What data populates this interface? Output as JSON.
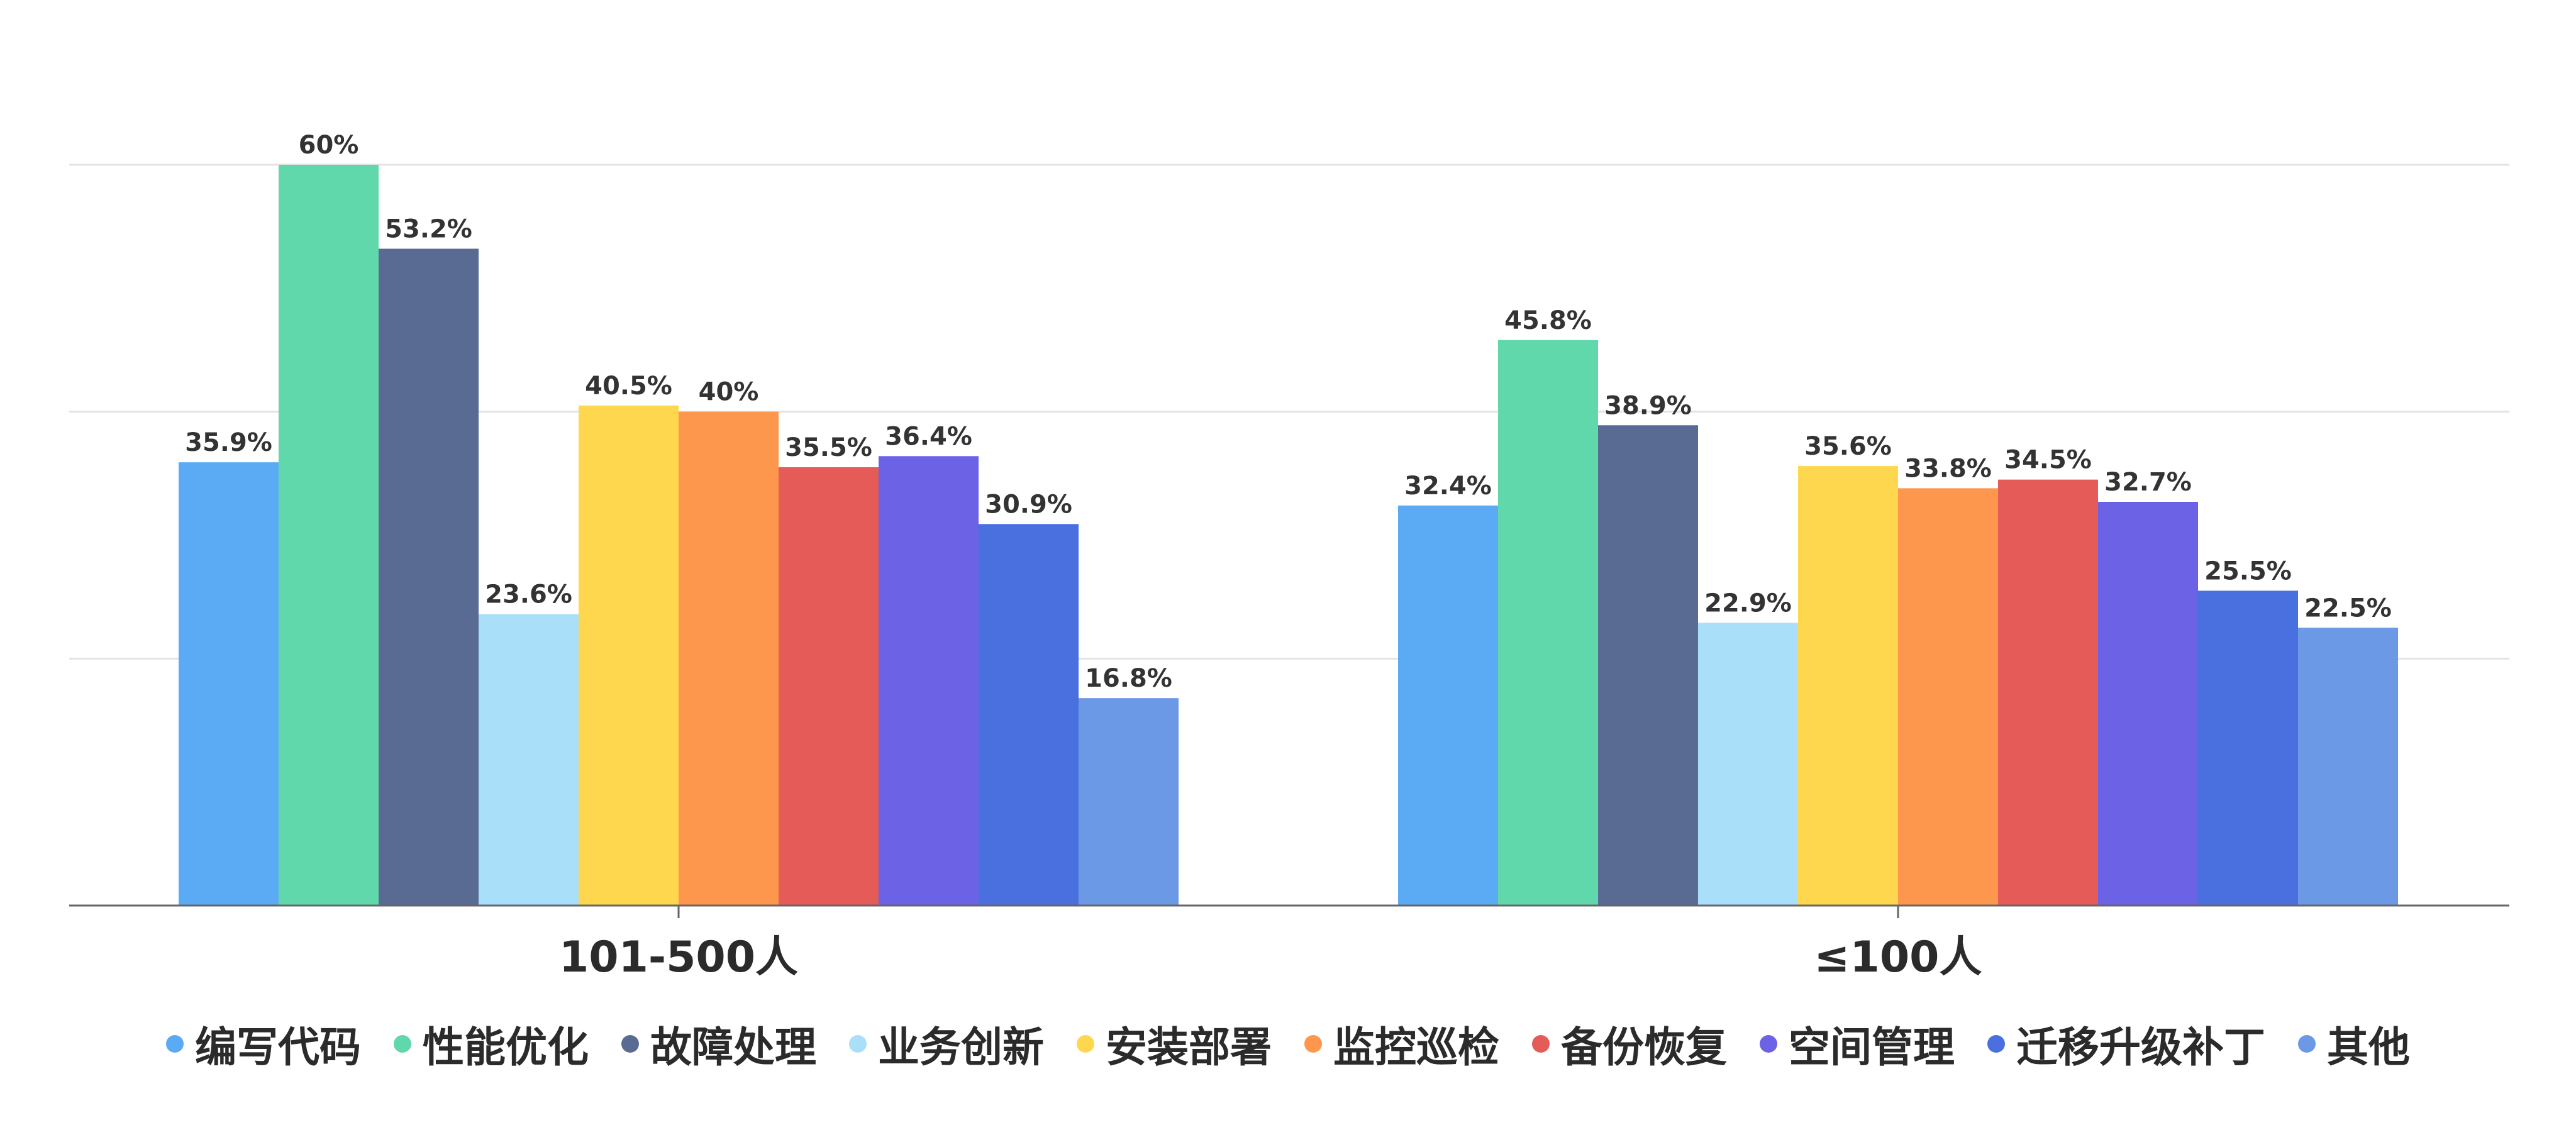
{
  "chart_data": {
    "type": "bar",
    "title": "",
    "xlabel": "",
    "ylabel": "",
    "ylim": [
      0,
      60
    ],
    "grid": true,
    "legend_position": "bottom",
    "categories": [
      "101-500人",
      "≤100人"
    ],
    "series": [
      {
        "name": "编写代码",
        "values": [
          35.9,
          32.4
        ],
        "labels": [
          "35.9%",
          "32.4%"
        ],
        "color": "#5aabf4"
      },
      {
        "name": "性能优化",
        "values": [
          60,
          45.8
        ],
        "labels": [
          "60%",
          "45.8%"
        ],
        "color": "#60d8ab"
      },
      {
        "name": "故障处理",
        "values": [
          53.2,
          38.9
        ],
        "labels": [
          "53.2%",
          "38.9%"
        ],
        "color": "#5a6b93"
      },
      {
        "name": "业务创新",
        "values": [
          23.6,
          22.9
        ],
        "labels": [
          "23.6%",
          "22.9%"
        ],
        "color": "#aadffa"
      },
      {
        "name": "安装部署",
        "values": [
          40.5,
          35.6
        ],
        "labels": [
          "40.5%",
          "35.6%"
        ],
        "color": "#fed74e"
      },
      {
        "name": "监控巡检",
        "values": [
          40,
          33.8
        ],
        "labels": [
          "40%",
          "33.8%"
        ],
        "color": "#fe974e"
      },
      {
        "name": "备份恢复",
        "values": [
          35.5,
          34.5
        ],
        "labels": [
          "35.5%",
          "34.5%"
        ],
        "color": "#e55b57"
      },
      {
        "name": "空间管理",
        "values": [
          36.4,
          32.7
        ],
        "labels": [
          "36.4%",
          "32.7%"
        ],
        "color": "#6b62e5"
      },
      {
        "name": "迁移升级补丁",
        "values": [
          30.9,
          25.5
        ],
        "labels": [
          "30.9%",
          "25.5%"
        ],
        "color": "#4a70e0"
      },
      {
        "name": "其他",
        "values": [
          16.8,
          22.5
        ],
        "labels": [
          "16.8%",
          "22.5%"
        ],
        "color": "#6c99e5"
      }
    ]
  }
}
